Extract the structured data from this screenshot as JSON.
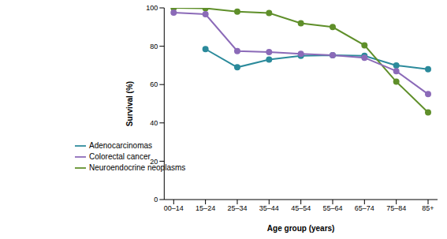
{
  "chart_data": {
    "type": "line",
    "x_label": "Age group (years)",
    "y_label": "Survival (%)",
    "categories": [
      "00–14",
      "15–24",
      "25–34",
      "35–44",
      "45–54",
      "55–64",
      "65–74",
      "75–84",
      "85+"
    ],
    "series": [
      {
        "name": "Adenocarcinomas",
        "color": "#2b8a9b",
        "values": [
          null,
          78.5,
          69,
          73,
          75,
          75.3,
          75,
          70,
          68
        ]
      },
      {
        "name": "Neuroendocrine neoplasms",
        "color": "#5f8f2a",
        "values": [
          100,
          99.8,
          98,
          97.3,
          92,
          90,
          80.5,
          61.5,
          45.5
        ]
      },
      {
        "name": "Colorectal cancer",
        "color": "#8b6ab8",
        "values": [
          97.5,
          96.7,
          77.5,
          77,
          76,
          75.3,
          74,
          67,
          55
        ]
      }
    ],
    "ylim": [
      0,
      100
    ],
    "yticks": [
      0,
      20,
      40,
      60,
      80,
      100
    ],
    "grid": false,
    "legend": "lower left",
    "marker": "circle"
  }
}
